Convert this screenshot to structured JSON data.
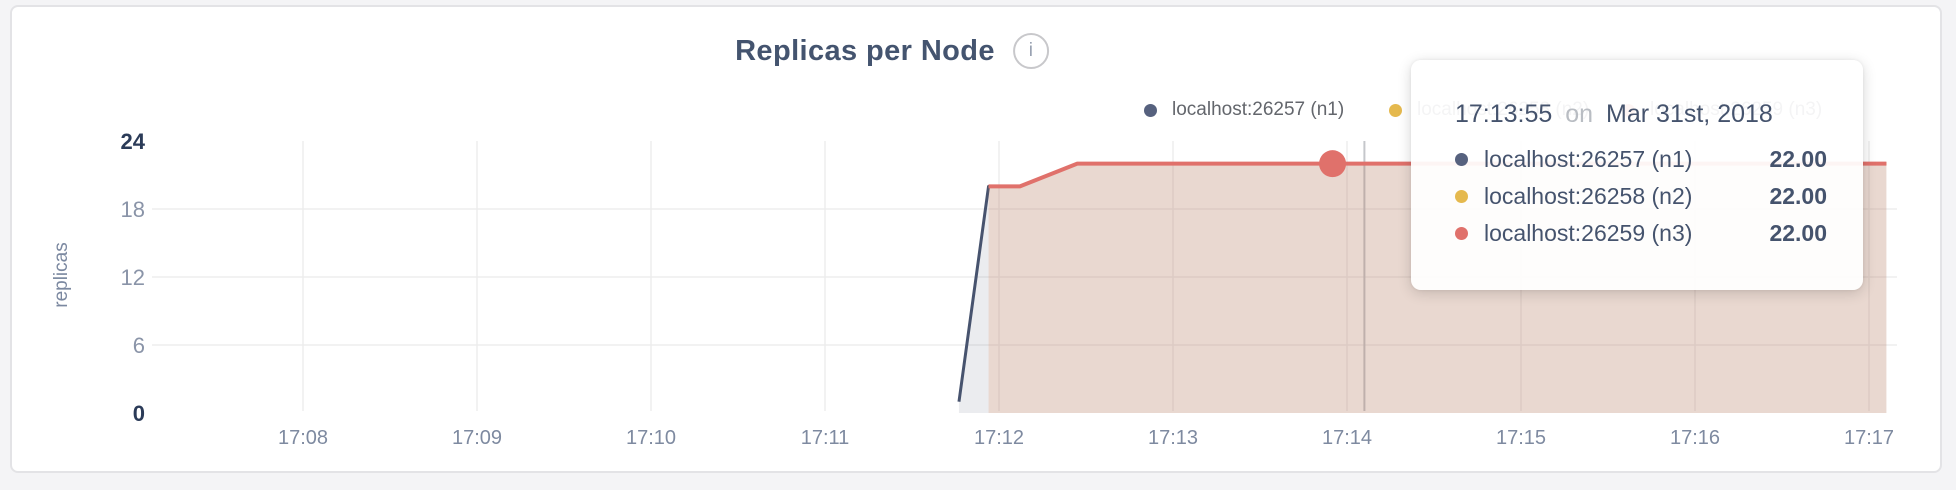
{
  "card": {
    "title": "Replicas per Node",
    "info_icon": "i"
  },
  "legend": {
    "items": [
      {
        "label": "localhost:26257 (n1)",
        "color": "#56617E"
      },
      {
        "label": "localhost:26258 (n2)",
        "color": "#E5B94E"
      },
      {
        "label": "localhost:26259 (n3)",
        "color": "#E0716B"
      }
    ]
  },
  "tooltip": {
    "time": "17:13:55",
    "conjunction": "on",
    "date": "Mar 31st, 2018",
    "rows": [
      {
        "label": "localhost:26257 (n1)",
        "value": "22.00",
        "color": "#56617E"
      },
      {
        "label": "localhost:26258 (n2)",
        "value": "22.00",
        "color": "#E5B94E"
      },
      {
        "label": "localhost:26259 (n3)",
        "value": "22.00",
        "color": "#E0716B"
      }
    ]
  },
  "chart_data": {
    "type": "area",
    "title": "Replicas per Node",
    "ylabel": "replicas",
    "xlabel": "",
    "ylim": [
      0,
      24
    ],
    "y_ticks": [
      0,
      6,
      12,
      18,
      24
    ],
    "x_axis_unit": "minutes past 17:00",
    "x_ticks": [
      8,
      9,
      10,
      11,
      12,
      13,
      14,
      15,
      16,
      17
    ],
    "x_tick_labels": [
      "17:08",
      "17:09",
      "17:10",
      "17:11",
      "17:12",
      "17:13",
      "17:14",
      "17:15",
      "17:16",
      "17:17"
    ],
    "grid": true,
    "legend_position": "top",
    "series": [
      {
        "name": "localhost:26257 (n1)",
        "color": "#47536E",
        "width": 3,
        "points": [
          [
            11.77,
            1
          ],
          [
            11.94,
            20
          ],
          [
            12.12,
            20
          ],
          [
            12.45,
            22
          ],
          [
            17.1,
            22
          ]
        ]
      },
      {
        "name": "localhost:26258 (n2)",
        "color": "#E5B94E",
        "width": 3,
        "points": [
          [
            11.94,
            20
          ],
          [
            12.12,
            20
          ],
          [
            12.45,
            22
          ],
          [
            17.1,
            22
          ]
        ]
      },
      {
        "name": "localhost:26259 (n3)",
        "color": "#E0716B",
        "width": 4,
        "points": [
          [
            11.94,
            20
          ],
          [
            12.12,
            20
          ],
          [
            12.45,
            22
          ],
          [
            17.1,
            22
          ]
        ]
      }
    ],
    "highlight": {
      "x": 13.917,
      "y": 22,
      "time": "17:13:55",
      "color": "#E0716B"
    },
    "crosshair_x": 14.1,
    "colors": {
      "grid": "#EDEDED",
      "crosshair": "#C5C7CB",
      "x_tick": "#7E8AA0",
      "tick_minor": "#8A94A8",
      "tick_major": "#2B3B58",
      "axis_label": "#7B88A0",
      "fill_opacity": 0.11
    }
  }
}
